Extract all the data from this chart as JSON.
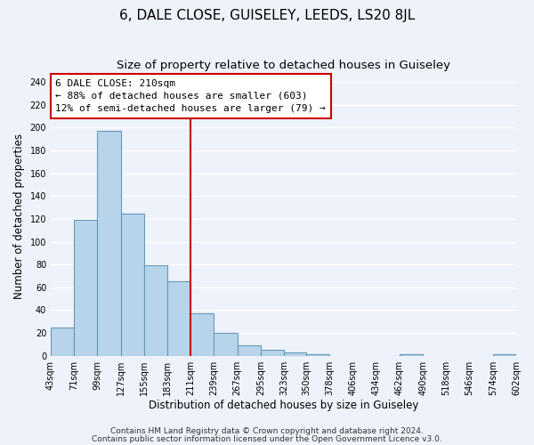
{
  "title": "6, DALE CLOSE, GUISELEY, LEEDS, LS20 8JL",
  "subtitle": "Size of property relative to detached houses in Guiseley",
  "xlabel": "Distribution of detached houses by size in Guiseley",
  "ylabel": "Number of detached properties",
  "bar_edges": [
    43,
    71,
    99,
    127,
    155,
    183,
    211,
    239,
    267,
    295,
    323,
    350,
    378,
    406,
    434,
    462,
    490,
    518,
    546,
    574,
    602
  ],
  "bar_heights": [
    25,
    119,
    197,
    125,
    79,
    65,
    37,
    20,
    9,
    5,
    3,
    1,
    0,
    0,
    0,
    1,
    0,
    0,
    0,
    1
  ],
  "tick_labels": [
    "43sqm",
    "71sqm",
    "99sqm",
    "127sqm",
    "155sqm",
    "183sqm",
    "211sqm",
    "239sqm",
    "267sqm",
    "295sqm",
    "323sqm",
    "350sqm",
    "378sqm",
    "406sqm",
    "434sqm",
    "462sqm",
    "490sqm",
    "518sqm",
    "546sqm",
    "574sqm",
    "602sqm"
  ],
  "bar_color": "#b8d4ea",
  "bar_edge_color": "#6699bb",
  "vline_x": 211,
  "vline_color": "#cc0000",
  "annotation_box_edge_color": "#cc0000",
  "annotation_line1": "6 DALE CLOSE: 210sqm",
  "annotation_line2": "← 88% of detached houses are smaller (603)",
  "annotation_line3": "12% of semi-detached houses are larger (79) →",
  "ylim": [
    0,
    245
  ],
  "yticks": [
    0,
    20,
    40,
    60,
    80,
    100,
    120,
    140,
    160,
    180,
    200,
    220,
    240
  ],
  "footer1": "Contains HM Land Registry data © Crown copyright and database right 2024.",
  "footer2": "Contains public sector information licensed under the Open Government Licence v3.0.",
  "background_color": "#eef2fb",
  "grid_color": "#ffffff",
  "title_fontsize": 11,
  "subtitle_fontsize": 9.5,
  "axis_label_fontsize": 8.5,
  "tick_fontsize": 7,
  "annotation_fontsize": 8,
  "footer_fontsize": 6.5
}
